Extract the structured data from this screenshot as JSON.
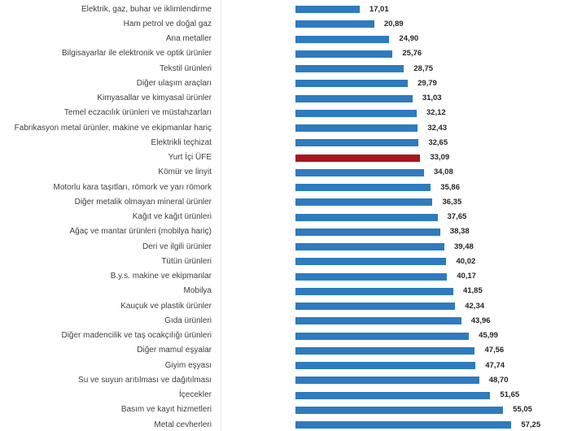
{
  "chart_data": {
    "type": "bar",
    "orientation": "horizontal",
    "title": "",
    "xlabel": "",
    "ylabel": "",
    "xlim": [
      0,
      60
    ],
    "grid": false,
    "colors": {
      "default": "#2e7bbf",
      "highlight": "#a8161c"
    },
    "highlight_category": "Yurt İçi ÜFE",
    "categories": [
      "Elektrik, gaz, buhar ve iklimlendirme",
      "Ham petrol ve doğal gaz",
      "Ana metaller",
      "Bilgisayarlar ile elektronik ve optik ürünler",
      "Tekstil ürünleri",
      "Diğer ulaşım araçları",
      "Kimyasallar ve kimyasal ürünler",
      "Temel eczacılık ürünleri ve müstahzarları",
      "Fabrikasyon metal ürünler, makine ve ekipmanlar hariç",
      "Elektrikli teçhizat",
      "Yurt İçi ÜFE",
      "Kömür ve linyit",
      "Motorlu kara taşıtları, römork ve yarı römork",
      "Diğer metalik olmayan mineral ürünler",
      "Kağıt ve kağıt ürünleri",
      "Ağaç ve mantar ürünleri (mobilya hariç)",
      "Deri ve ilgili ürünler",
      "Tütün ürünleri",
      "B.y.s. makine ve ekipmanlar",
      "Mobilya",
      "Kauçuk ve plastik ürünler",
      "Gıda ürünleri",
      "Diğer madencilik ve taş ocakçılığı ürünleri",
      "Diğer mamul eşyalar",
      "Giyim eşyası",
      "Su ve suyun arıtılması ve dağıtılması",
      "İçecekler",
      "Basım ve kayıt hizmetleri",
      "Metal cevherleri"
    ],
    "values": [
      17.01,
      20.89,
      24.9,
      25.76,
      28.75,
      29.79,
      31.03,
      32.12,
      32.43,
      32.65,
      33.09,
      34.08,
      35.86,
      36.35,
      37.65,
      38.38,
      39.48,
      40.02,
      40.17,
      41.85,
      42.34,
      43.96,
      45.99,
      47.56,
      47.74,
      48.7,
      51.65,
      55.05,
      57.25
    ],
    "value_labels": [
      "17,01",
      "20,89",
      "24,90",
      "25,76",
      "28,75",
      "29,79",
      "31,03",
      "32,12",
      "32,43",
      "32,65",
      "33,09",
      "34,08",
      "35,86",
      "36,35",
      "37,65",
      "38,38",
      "39,48",
      "40,02",
      "40,17",
      "41,85",
      "42,34",
      "43,96",
      "45,99",
      "47,56",
      "47,74",
      "48,70",
      "51,65",
      "55,05",
      "57,25"
    ]
  }
}
